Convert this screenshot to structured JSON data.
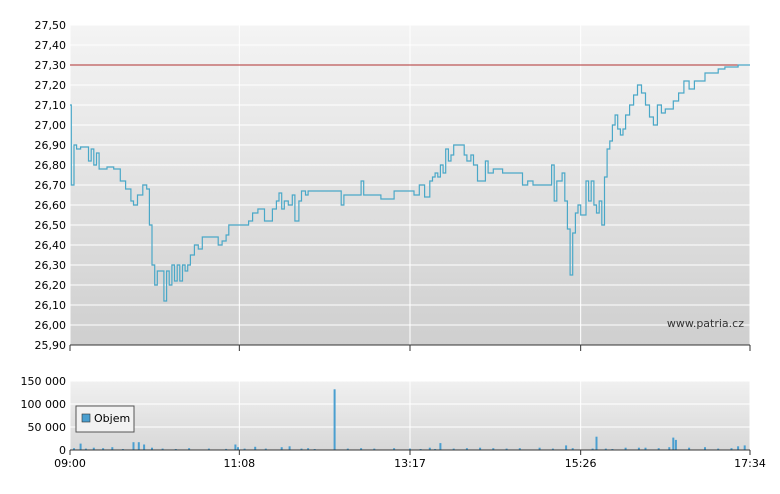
{
  "source_label": "www.patria.cz",
  "colors": {
    "price_line": "#4aa8c8",
    "reference_line": "#b03030",
    "volume_bar": "#4a9fd0",
    "grid": "#ffffff",
    "plot_bg_top": "#f4f4f4",
    "plot_bg_bottom": "#cfcfcf"
  },
  "chart_data": [
    {
      "type": "line",
      "name": "price",
      "ylim": [
        25.9,
        27.5
      ],
      "y_ticks": [
        "27,50",
        "27,40",
        "27,30",
        "27,20",
        "27,10",
        "27,00",
        "26,90",
        "26,80",
        "26,70",
        "26,60",
        "26,50",
        "26,40",
        "26,30",
        "26,20",
        "26,10",
        "26,00",
        "25,90"
      ],
      "x_tick_labels": [
        "09:00",
        "11:08",
        "13:17",
        "15:26",
        "17:34"
      ],
      "reference_value": 27.3,
      "grid": true,
      "series": [
        {
          "points": [
            [
              "09:00",
              27.1
            ],
            [
              "09:01",
              26.7
            ],
            [
              "09:03",
              26.9
            ],
            [
              "09:05",
              26.88
            ],
            [
              "09:08",
              26.89
            ],
            [
              "09:12",
              26.89
            ],
            [
              "09:14",
              26.82
            ],
            [
              "09:16",
              26.88
            ],
            [
              "09:18",
              26.8
            ],
            [
              "09:20",
              26.86
            ],
            [
              "09:22",
              26.78
            ],
            [
              "09:28",
              26.79
            ],
            [
              "09:33",
              26.78
            ],
            [
              "09:38",
              26.72
            ],
            [
              "09:42",
              26.68
            ],
            [
              "09:46",
              26.62
            ],
            [
              "09:48",
              26.6
            ],
            [
              "09:51",
              26.65
            ],
            [
              "09:55",
              26.7
            ],
            [
              "09:58",
              26.68
            ],
            [
              "10:00",
              26.5
            ],
            [
              "10:02",
              26.3
            ],
            [
              "10:04",
              26.2
            ],
            [
              "10:06",
              26.27
            ],
            [
              "10:09",
              26.27
            ],
            [
              "10:11",
              26.12
            ],
            [
              "10:13",
              26.27
            ],
            [
              "10:15",
              26.2
            ],
            [
              "10:17",
              26.3
            ],
            [
              "10:19",
              26.22
            ],
            [
              "10:21",
              26.3
            ],
            [
              "10:23",
              26.22
            ],
            [
              "10:25",
              26.3
            ],
            [
              "10:27",
              26.27
            ],
            [
              "10:29",
              26.3
            ],
            [
              "10:31",
              26.35
            ],
            [
              "10:34",
              26.4
            ],
            [
              "10:37",
              26.38
            ],
            [
              "10:40",
              26.44
            ],
            [
              "10:44",
              26.44
            ],
            [
              "10:50",
              26.44
            ],
            [
              "10:52",
              26.4
            ],
            [
              "10:55",
              26.42
            ],
            [
              "10:58",
              26.45
            ],
            [
              "11:00",
              26.5
            ],
            [
              "11:08",
              26.5
            ],
            [
              "11:15",
              26.52
            ],
            [
              "11:18",
              26.56
            ],
            [
              "11:22",
              26.58
            ],
            [
              "11:27",
              26.52
            ],
            [
              "11:31",
              26.52
            ],
            [
              "11:33",
              26.58
            ],
            [
              "11:36",
              26.62
            ],
            [
              "11:38",
              26.66
            ],
            [
              "11:40",
              26.58
            ],
            [
              "11:42",
              26.62
            ],
            [
              "11:45",
              26.6
            ],
            [
              "11:48",
              26.65
            ],
            [
              "11:50",
              26.52
            ],
            [
              "11:53",
              26.62
            ],
            [
              "11:55",
              26.67
            ],
            [
              "11:58",
              26.65
            ],
            [
              "12:00",
              26.67
            ],
            [
              "12:10",
              26.67
            ],
            [
              "12:20",
              26.67
            ],
            [
              "12:25",
              26.6
            ],
            [
              "12:27",
              26.65
            ],
            [
              "12:30",
              26.65
            ],
            [
              "12:38",
              26.65
            ],
            [
              "12:40",
              26.72
            ],
            [
              "12:42",
              26.65
            ],
            [
              "12:48",
              26.65
            ],
            [
              "12:55",
              26.63
            ],
            [
              "13:00",
              26.63
            ],
            [
              "13:05",
              26.67
            ],
            [
              "13:12",
              26.67
            ],
            [
              "13:17",
              26.67
            ],
            [
              "13:20",
              26.65
            ],
            [
              "13:24",
              26.7
            ],
            [
              "13:28",
              26.64
            ],
            [
              "13:32",
              26.72
            ],
            [
              "13:34",
              26.74
            ],
            [
              "13:36",
              26.76
            ],
            [
              "13:38",
              26.74
            ],
            [
              "13:40",
              26.8
            ],
            [
              "13:42",
              26.76
            ],
            [
              "13:44",
              26.88
            ],
            [
              "13:46",
              26.82
            ],
            [
              "13:48",
              26.85
            ],
            [
              "13:50",
              26.9
            ],
            [
              "13:55",
              26.9
            ],
            [
              "13:58",
              26.85
            ],
            [
              "14:00",
              26.82
            ],
            [
              "14:03",
              26.85
            ],
            [
              "14:05",
              26.8
            ],
            [
              "14:08",
              26.72
            ],
            [
              "14:12",
              26.72
            ],
            [
              "14:14",
              26.82
            ],
            [
              "14:16",
              26.76
            ],
            [
              "14:20",
              26.78
            ],
            [
              "14:25",
              26.78
            ],
            [
              "14:27",
              26.76
            ],
            [
              "14:32",
              26.76
            ],
            [
              "14:38",
              26.76
            ],
            [
              "14:42",
              26.7
            ],
            [
              "14:46",
              26.72
            ],
            [
              "14:50",
              26.7
            ],
            [
              "14:56",
              26.7
            ],
            [
              "15:02",
              26.7
            ],
            [
              "15:04",
              26.8
            ],
            [
              "15:06",
              26.62
            ],
            [
              "15:08",
              26.72
            ],
            [
              "15:10",
              26.72
            ],
            [
              "15:12",
              26.76
            ],
            [
              "15:14",
              26.62
            ],
            [
              "15:16",
              26.48
            ],
            [
              "15:18",
              26.25
            ],
            [
              "15:20",
              26.46
            ],
            [
              "15:22",
              26.56
            ],
            [
              "15:24",
              26.6
            ],
            [
              "15:26",
              26.55
            ],
            [
              "15:28",
              26.55
            ],
            [
              "15:30",
              26.72
            ],
            [
              "15:32",
              26.62
            ],
            [
              "15:34",
              26.72
            ],
            [
              "15:36",
              26.6
            ],
            [
              "15:38",
              26.56
            ],
            [
              "15:40",
              26.62
            ],
            [
              "15:42",
              26.5
            ],
            [
              "15:44",
              26.74
            ],
            [
              "15:46",
              26.88
            ],
            [
              "15:48",
              26.92
            ],
            [
              "15:50",
              27.0
            ],
            [
              "15:52",
              27.05
            ],
            [
              "15:54",
              26.98
            ],
            [
              "15:56",
              26.95
            ],
            [
              "15:58",
              26.98
            ],
            [
              "16:00",
              27.05
            ],
            [
              "16:03",
              27.1
            ],
            [
              "16:06",
              27.15
            ],
            [
              "16:09",
              27.2
            ],
            [
              "16:12",
              27.16
            ],
            [
              "16:15",
              27.1
            ],
            [
              "16:18",
              27.04
            ],
            [
              "16:21",
              27.0
            ],
            [
              "16:24",
              27.1
            ],
            [
              "16:27",
              27.06
            ],
            [
              "16:30",
              27.08
            ],
            [
              "16:33",
              27.08
            ],
            [
              "16:36",
              27.12
            ],
            [
              "16:40",
              27.16
            ],
            [
              "16:44",
              27.22
            ],
            [
              "16:48",
              27.18
            ],
            [
              "16:52",
              27.22
            ],
            [
              "16:56",
              27.22
            ],
            [
              "17:00",
              27.26
            ],
            [
              "17:05",
              27.26
            ],
            [
              "17:10",
              27.28
            ],
            [
              "17:15",
              27.29
            ],
            [
              "17:20",
              27.29
            ],
            [
              "17:25",
              27.3
            ],
            [
              "17:34",
              27.3
            ]
          ]
        }
      ]
    },
    {
      "type": "bar",
      "name": "volume",
      "ylim": [
        0,
        150000
      ],
      "y_ticks": [
        "150 000",
        "100 000",
        "50 000",
        "0"
      ],
      "x_tick_labels": [
        "09:00",
        "11:08",
        "13:17",
        "15:26",
        "17:34"
      ],
      "grid": true,
      "legend": {
        "label": "Objem",
        "placement": "middle-left"
      },
      "series": [
        {
          "name": "Objem",
          "bars": [
            [
              "09:03",
              4000
            ],
            [
              "09:08",
              14000
            ],
            [
              "09:12",
              3000
            ],
            [
              "09:18",
              5000
            ],
            [
              "09:25",
              4000
            ],
            [
              "09:32",
              6000
            ],
            [
              "09:40",
              2000
            ],
            [
              "09:48",
              17000
            ],
            [
              "09:52",
              17000
            ],
            [
              "09:56",
              12000
            ],
            [
              "10:02",
              5000
            ],
            [
              "10:10",
              3000
            ],
            [
              "10:20",
              2000
            ],
            [
              "10:30",
              4000
            ],
            [
              "10:45",
              3000
            ],
            [
              "10:58",
              2500
            ],
            [
              "11:05",
              12000
            ],
            [
              "11:07",
              6000
            ],
            [
              "11:12",
              3000
            ],
            [
              "11:20",
              7000
            ],
            [
              "11:28",
              3000
            ],
            [
              "11:40",
              6000
            ],
            [
              "11:46",
              8000
            ],
            [
              "11:55",
              3000
            ],
            [
              "12:00",
              4000
            ],
            [
              "12:05",
              2000
            ],
            [
              "12:20",
              132000
            ],
            [
              "12:30",
              3000
            ],
            [
              "12:40",
              4000
            ],
            [
              "12:50",
              3000
            ],
            [
              "13:05",
              4000
            ],
            [
              "13:17",
              3000
            ],
            [
              "13:25",
              2000
            ],
            [
              "13:32",
              5000
            ],
            [
              "13:36",
              2000
            ],
            [
              "13:40",
              15000
            ],
            [
              "13:50",
              3000
            ],
            [
              "14:00",
              4000
            ],
            [
              "14:10",
              5000
            ],
            [
              "14:20",
              4000
            ],
            [
              "14:30",
              3000
            ],
            [
              "14:40",
              4000
            ],
            [
              "14:55",
              5000
            ],
            [
              "15:05",
              3000
            ],
            [
              "15:15",
              10000
            ],
            [
              "15:20",
              4000
            ],
            [
              "15:35",
              3000
            ],
            [
              "15:38",
              29000
            ],
            [
              "15:45",
              3000
            ],
            [
              "15:50",
              2000
            ],
            [
              "16:00",
              5000
            ],
            [
              "16:10",
              5000
            ],
            [
              "16:15",
              5000
            ],
            [
              "16:25",
              4000
            ],
            [
              "16:33",
              6000
            ],
            [
              "16:36",
              27000
            ],
            [
              "16:38",
              22000
            ],
            [
              "16:48",
              5000
            ],
            [
              "17:00",
              6000
            ],
            [
              "17:10",
              3000
            ],
            [
              "17:20",
              4000
            ],
            [
              "17:25",
              8000
            ],
            [
              "17:30",
              10000
            ]
          ]
        }
      ]
    }
  ]
}
